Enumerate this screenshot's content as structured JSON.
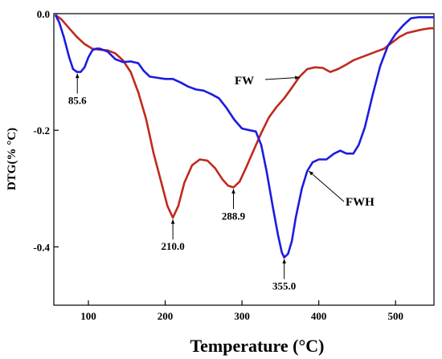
{
  "chart_data": {
    "type": "line",
    "xlabel": "Temperature (°C)",
    "ylabel": "DTG(% °C)",
    "xlim": [
      55,
      550
    ],
    "ylim": [
      -0.5,
      0.0
    ],
    "x_ticks": [
      100,
      200,
      300,
      400,
      500
    ],
    "y_ticks": [
      0.0,
      -0.2,
      -0.4
    ],
    "x_tick_labels": [
      "100",
      "200",
      "300",
      "400",
      "500"
    ],
    "y_tick_labels": [
      "0.0",
      "-0.2",
      "-0.4"
    ],
    "grid": false,
    "series": [
      {
        "name": "FW",
        "color": "#c02a1c",
        "points": [
          [
            57,
            -0.002
          ],
          [
            65,
            -0.01
          ],
          [
            75,
            -0.025
          ],
          [
            85,
            -0.04
          ],
          [
            95,
            -0.052
          ],
          [
            105,
            -0.06
          ],
          [
            115,
            -0.062
          ],
          [
            125,
            -0.063
          ],
          [
            135,
            -0.068
          ],
          [
            145,
            -0.08
          ],
          [
            155,
            -0.1
          ],
          [
            165,
            -0.135
          ],
          [
            175,
            -0.18
          ],
          [
            185,
            -0.24
          ],
          [
            195,
            -0.29
          ],
          [
            203,
            -0.33
          ],
          [
            210,
            -0.35
          ],
          [
            217,
            -0.33
          ],
          [
            225,
            -0.29
          ],
          [
            235,
            -0.26
          ],
          [
            245,
            -0.25
          ],
          [
            255,
            -0.252
          ],
          [
            265,
            -0.265
          ],
          [
            275,
            -0.285
          ],
          [
            282,
            -0.295
          ],
          [
            289,
            -0.298
          ],
          [
            297,
            -0.288
          ],
          [
            305,
            -0.265
          ],
          [
            315,
            -0.235
          ],
          [
            325,
            -0.205
          ],
          [
            335,
            -0.178
          ],
          [
            345,
            -0.16
          ],
          [
            355,
            -0.145
          ],
          [
            365,
            -0.127
          ],
          [
            375,
            -0.108
          ],
          [
            385,
            -0.095
          ],
          [
            395,
            -0.092
          ],
          [
            405,
            -0.093
          ],
          [
            415,
            -0.1
          ],
          [
            425,
            -0.095
          ],
          [
            435,
            -0.088
          ],
          [
            445,
            -0.08
          ],
          [
            455,
            -0.075
          ],
          [
            465,
            -0.07
          ],
          [
            475,
            -0.065
          ],
          [
            485,
            -0.06
          ],
          [
            495,
            -0.05
          ],
          [
            505,
            -0.04
          ],
          [
            515,
            -0.033
          ],
          [
            525,
            -0.03
          ],
          [
            535,
            -0.027
          ],
          [
            545,
            -0.025
          ],
          [
            550,
            -0.025
          ]
        ]
      },
      {
        "name": "FWH",
        "color": "#1d1be0",
        "points": [
          [
            57,
            -0.002
          ],
          [
            62,
            -0.015
          ],
          [
            68,
            -0.04
          ],
          [
            75,
            -0.075
          ],
          [
            80,
            -0.095
          ],
          [
            85,
            -0.1
          ],
          [
            90,
            -0.1
          ],
          [
            95,
            -0.092
          ],
          [
            100,
            -0.075
          ],
          [
            105,
            -0.063
          ],
          [
            110,
            -0.06
          ],
          [
            115,
            -0.06
          ],
          [
            125,
            -0.065
          ],
          [
            135,
            -0.078
          ],
          [
            145,
            -0.083
          ],
          [
            155,
            -0.082
          ],
          [
            165,
            -0.085
          ],
          [
            172,
            -0.098
          ],
          [
            180,
            -0.108
          ],
          [
            190,
            -0.11
          ],
          [
            200,
            -0.112
          ],
          [
            210,
            -0.112
          ],
          [
            220,
            -0.118
          ],
          [
            230,
            -0.125
          ],
          [
            240,
            -0.13
          ],
          [
            250,
            -0.132
          ],
          [
            260,
            -0.138
          ],
          [
            270,
            -0.145
          ],
          [
            280,
            -0.162
          ],
          [
            290,
            -0.182
          ],
          [
            300,
            -0.197
          ],
          [
            310,
            -0.2
          ],
          [
            318,
            -0.202
          ],
          [
            325,
            -0.225
          ],
          [
            332,
            -0.27
          ],
          [
            340,
            -0.33
          ],
          [
            347,
            -0.38
          ],
          [
            352,
            -0.41
          ],
          [
            355,
            -0.418
          ],
          [
            360,
            -0.412
          ],
          [
            365,
            -0.39
          ],
          [
            370,
            -0.35
          ],
          [
            378,
            -0.3
          ],
          [
            385,
            -0.27
          ],
          [
            392,
            -0.255
          ],
          [
            400,
            -0.25
          ],
          [
            410,
            -0.25
          ],
          [
            420,
            -0.24
          ],
          [
            428,
            -0.235
          ],
          [
            436,
            -0.24
          ],
          [
            445,
            -0.24
          ],
          [
            452,
            -0.225
          ],
          [
            460,
            -0.195
          ],
          [
            470,
            -0.14
          ],
          [
            480,
            -0.09
          ],
          [
            490,
            -0.055
          ],
          [
            500,
            -0.035
          ],
          [
            510,
            -0.02
          ],
          [
            520,
            -0.008
          ],
          [
            530,
            -0.006
          ],
          [
            540,
            -0.006
          ],
          [
            550,
            -0.006
          ]
        ]
      }
    ],
    "annotations": [
      {
        "text": "85.6",
        "x": 85.6,
        "y": -0.1
      },
      {
        "text": "210.0",
        "x": 210.0,
        "y": -0.35
      },
      {
        "text": "288.9",
        "x": 288.9,
        "y": -0.298
      },
      {
        "text": "355.0",
        "x": 355.0,
        "y": -0.418
      }
    ],
    "series_labels": [
      {
        "text": "FW",
        "series": "FW"
      },
      {
        "text": "FWH",
        "series": "FWH"
      }
    ]
  }
}
